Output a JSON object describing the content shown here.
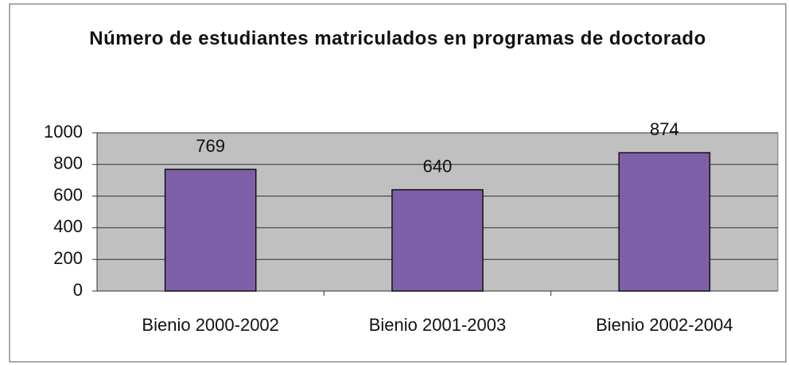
{
  "chart_data": {
    "type": "bar",
    "title": "Número de estudiantes matriculados en programas de doctorado",
    "categories": [
      "Bienio 2000-2002",
      "Bienio 2001-2003",
      "Bienio 2002-2004"
    ],
    "values": [
      769,
      640,
      874
    ],
    "color": "#7f60a8",
    "ylim": [
      0,
      1000
    ],
    "yticks": [
      0,
      200,
      400,
      600,
      800,
      1000
    ],
    "grid": true
  }
}
